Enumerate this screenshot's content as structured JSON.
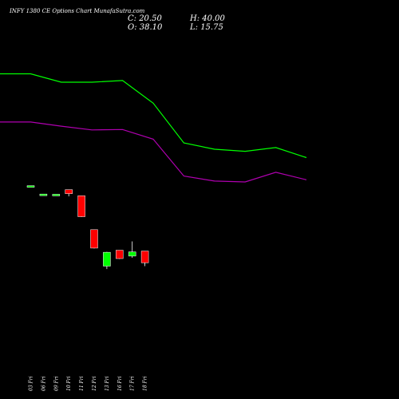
{
  "chart_data": {
    "type": "candlestick",
    "title": "INFY 1380  CE Options  Chart MunafaSutra.com",
    "ohlc_summary": {
      "close_label": "C: 20.50",
      "high_label": "H: 40.00",
      "open_label": "O: 38.10",
      "low_label": "L: 15.75"
    },
    "x_tick_labels": [
      "03 Fri",
      "06 Fri",
      "09 Fri",
      "10 Fri",
      "11 Fri",
      "12 Fri",
      "13 Fri",
      "16 Fri",
      "17 Fri",
      "18 Fri"
    ],
    "candles": [
      {
        "open": 3.3,
        "high": 3.3,
        "low": 3.3,
        "close": 3.3
      },
      {
        "open": 1.2,
        "high": 1.2,
        "low": 1.2,
        "close": 1.3
      },
      {
        "open": 1.25,
        "high": 1.25,
        "low": 1.25,
        "close": 1.25
      },
      {
        "open": 2.35,
        "high": 2.35,
        "low": 0.75,
        "close": 1.4
      },
      {
        "open": 0.9,
        "high": 0.9,
        "low": -4.2,
        "close": -4.1
      },
      {
        "open": -7.2,
        "high": -7.2,
        "low": -11.7,
        "close": -11.6
      },
      {
        "open": -15.9,
        "high": -12.5,
        "low": -16.6,
        "close": -12.6
      },
      {
        "open": -12.1,
        "high": -12.1,
        "low": -14.2,
        "close": -14.1
      },
      {
        "open": -13.5,
        "high": -10.0,
        "low": -13.9,
        "close": -12.5
      },
      {
        "open": -12.3,
        "high": -12.3,
        "low": -15.9,
        "close": -15.1
      }
    ],
    "indicator_series": [
      {
        "color": "#00ff00",
        "values": [
          30.0,
          30.0,
          28.0,
          28.0,
          28.4,
          23.0,
          13.5,
          12.0,
          11.5,
          12.4,
          10.0
        ]
      },
      {
        "color": "#b000b0",
        "values": [
          18.5,
          18.5,
          17.5,
          16.6,
          16.7,
          14.4,
          5.6,
          4.4,
          4.2,
          6.5,
          4.7
        ]
      }
    ],
    "ylim": [
      -40,
      40
    ],
    "grid": false,
    "colors": {
      "up": "#00ff00",
      "down": "#ff0000",
      "flat": "#00ff00",
      "background": "#000000",
      "text": "#ffffff"
    }
  }
}
